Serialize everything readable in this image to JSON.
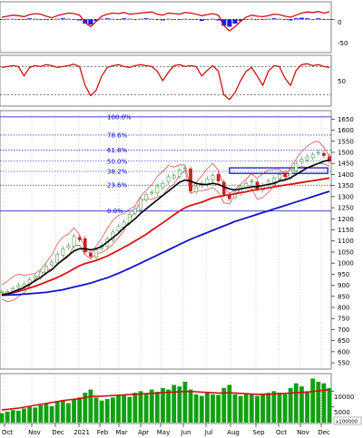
{
  "colors": {
    "price_up": "#2e8b2e",
    "price_down": "#cc2020",
    "ma_short": "#000000",
    "ma_mid": "#e01010",
    "ma_long": "#1010d0",
    "bollinger": "#d02020",
    "fib_line": "#0000cc",
    "volume_bar": "#10a010",
    "volume_ma": "#d01010",
    "macd_line": "#d01010",
    "macd_hist": "#1a1ae0",
    "stoch_line": "#d01010"
  },
  "chart_data": [
    {
      "panel": "macd",
      "type": "line",
      "ylim": [
        -60,
        30
      ],
      "y_ticks": [
        "0",
        "-50"
      ],
      "series": [
        {
          "kind": "line",
          "values": [
            4,
            6,
            8,
            7,
            5,
            9,
            11,
            10,
            6,
            3,
            7,
            10,
            12,
            11,
            8,
            -6,
            -14,
            -4,
            6,
            10,
            12,
            11,
            13,
            10,
            11,
            12,
            13,
            14,
            10,
            8,
            12,
            11,
            10,
            13,
            12,
            10,
            7,
            9,
            11,
            8,
            -12,
            -22,
            -14,
            -4,
            4,
            8,
            6,
            5,
            7,
            10,
            9,
            6,
            4,
            8,
            12,
            14,
            13,
            15,
            12,
            14
          ]
        },
        {
          "kind": "histogram",
          "values": [
            0,
            1,
            1,
            0,
            0,
            2,
            1,
            0,
            -1,
            0,
            1,
            2,
            1,
            0,
            -2,
            -8,
            -10,
            -3,
            1,
            2,
            1,
            0,
            2,
            1,
            0,
            1,
            2,
            1,
            -1,
            -2,
            1,
            0,
            -1,
            1,
            0,
            -1,
            -3,
            0,
            1,
            -2,
            -12,
            -14,
            -8,
            -3,
            0,
            1,
            0,
            -1,
            1,
            2,
            1,
            -1,
            -2,
            2,
            3,
            2,
            0,
            2,
            -1,
            0
          ]
        }
      ]
    },
    {
      "panel": "stochastic",
      "type": "line",
      "ylim": [
        0,
        100
      ],
      "y_ticks": [
        "50"
      ],
      "reference_levels": [
        80,
        20
      ],
      "series": [
        {
          "kind": "line",
          "values": [
            78,
            80,
            82,
            80,
            60,
            78,
            82,
            80,
            84,
            82,
            78,
            80,
            82,
            85,
            80,
            40,
            18,
            30,
            60,
            78,
            82,
            84,
            80,
            78,
            82,
            84,
            82,
            80,
            70,
            50,
            68,
            82,
            84,
            80,
            82,
            80,
            60,
            72,
            82,
            70,
            20,
            10,
            25,
            50,
            70,
            78,
            60,
            40,
            70,
            82,
            80,
            55,
            40,
            72,
            84,
            86,
            82,
            84,
            80,
            78
          ]
        }
      ]
    },
    {
      "panel": "price",
      "type": "line",
      "x_ticks": [
        "Oct",
        "Nov",
        "Dec",
        "2021",
        "Feb",
        "Mar",
        "Apr",
        "May",
        "Jun",
        "Jul",
        "Aug",
        "Sep",
        "Oct",
        "Nov",
        "Dec"
      ],
      "y_ticks": [
        1650,
        1600,
        1550,
        1500,
        1450,
        1400,
        1350,
        1300,
        1250,
        1200,
        1150,
        1100,
        1050,
        1000,
        950,
        900,
        850,
        800,
        750,
        700,
        650,
        600,
        550
      ],
      "ylim": [
        530,
        1680
      ],
      "fibonacci": [
        {
          "label": "100.0%",
          "value": 1660
        },
        {
          "label": "78.6%",
          "value": 1578
        },
        {
          "label": "61.8%",
          "value": 1510
        },
        {
          "label": "50.0%",
          "value": 1460
        },
        {
          "label": "38.2%",
          "value": 1414
        },
        {
          "label": "23.6%",
          "value": 1352
        },
        {
          "label": "0.0%",
          "value": 1235
        }
      ],
      "box": {
        "x_from": 0.695,
        "x_to": 0.995,
        "y_from": 1405,
        "y_to": 1430
      },
      "series": [
        {
          "name": "close",
          "values": [
            870,
            872,
            885,
            900,
            905,
            925,
            940,
            960,
            985,
            1005,
            1040,
            1065,
            1080,
            1120,
            1105,
            1050,
            1030,
            1060,
            1080,
            1110,
            1140,
            1165,
            1185,
            1220,
            1245,
            1290,
            1310,
            1320,
            1345,
            1360,
            1390,
            1395,
            1420,
            1430,
            1325,
            1345,
            1360,
            1380,
            1395,
            1370,
            1310,
            1290,
            1320,
            1345,
            1360,
            1370,
            1335,
            1350,
            1370,
            1385,
            1400,
            1390,
            1420,
            1450,
            1470,
            1480,
            1490,
            1500,
            1485,
            1460
          ]
        },
        {
          "name": "ma_short",
          "values": [
            855,
            860,
            870,
            880,
            890,
            905,
            920,
            935,
            955,
            970,
            995,
            1015,
            1035,
            1055,
            1065,
            1065,
            1060,
            1065,
            1075,
            1095,
            1115,
            1135,
            1160,
            1180,
            1200,
            1225,
            1245,
            1265,
            1285,
            1305,
            1325,
            1345,
            1365,
            1375,
            1370,
            1360,
            1355,
            1355,
            1360,
            1355,
            1345,
            1335,
            1330,
            1335,
            1340,
            1345,
            1345,
            1350,
            1355,
            1360,
            1370,
            1375,
            1385,
            1400,
            1415,
            1430,
            1440,
            1450,
            1460,
            1465
          ]
        },
        {
          "name": "ma_mid",
          "values": [
            860,
            862,
            866,
            872,
            880,
            888,
            896,
            905,
            915,
            925,
            935,
            948,
            960,
            975,
            988,
            998,
            1005,
            1012,
            1022,
            1032,
            1045,
            1058,
            1072,
            1085,
            1100,
            1115,
            1130,
            1148,
            1165,
            1182,
            1200,
            1218,
            1235,
            1250,
            1260,
            1268,
            1275,
            1285,
            1295,
            1300,
            1305,
            1308,
            1312,
            1318,
            1322,
            1328,
            1332,
            1336,
            1340,
            1344,
            1348,
            1352,
            1356,
            1360,
            1364,
            1368,
            1372,
            1376,
            1380,
            1384
          ]
        },
        {
          "name": "ma_long",
          "values": [
            855,
            856,
            857,
            858,
            860,
            862,
            864,
            866,
            868,
            872,
            876,
            880,
            886,
            892,
            898,
            904,
            910,
            918,
            926,
            934,
            944,
            954,
            965,
            976,
            988,
            1000,
            1012,
            1024,
            1036,
            1048,
            1060,
            1072,
            1084,
            1096,
            1108,
            1118,
            1128,
            1138,
            1148,
            1158,
            1168,
            1178,
            1188,
            1196,
            1204,
            1212,
            1220,
            1228,
            1236,
            1244,
            1252,
            1260,
            1268,
            1276,
            1284,
            1292,
            1300,
            1308,
            1316,
            1324
          ]
        }
      ]
    },
    {
      "panel": "volume",
      "type": "bar",
      "y_ticks": [
        "10000",
        "5000"
      ],
      "unit_label": "x100000",
      "ylim": [
        0,
        15000
      ],
      "series": [
        {
          "kind": "bar",
          "values": [
            3000,
            3500,
            4000,
            3800,
            4500,
            5000,
            4800,
            5500,
            6000,
            5200,
            6500,
            7000,
            6200,
            7500,
            8000,
            9500,
            10500,
            8000,
            7000,
            7500,
            8000,
            8500,
            9000,
            8200,
            9500,
            10000,
            9200,
            10500,
            9800,
            11000,
            10500,
            12000,
            11500,
            13000,
            10500,
            9000,
            8500,
            9500,
            9000,
            8800,
            11000,
            12000,
            9000,
            8500,
            9200,
            9000,
            8500,
            8800,
            9500,
            10000,
            9500,
            9000,
            11000,
            12500,
            11500,
            10000,
            14000,
            13000,
            12500,
            11000
          ]
        },
        {
          "kind": "line",
          "values": [
            4000,
            4200,
            4400,
            4600,
            4900,
            5200,
            5500,
            5800,
            6100,
            6400,
            6700,
            7000,
            7200,
            7400,
            7600,
            8000,
            8300,
            8400,
            8400,
            8500,
            8600,
            8700,
            8800,
            8900,
            9000,
            9100,
            9200,
            9300,
            9400,
            9500,
            9600,
            9700,
            9800,
            9900,
            9900,
            9800,
            9700,
            9600,
            9500,
            9400,
            9400,
            9500,
            9400,
            9300,
            9200,
            9100,
            9000,
            9000,
            9000,
            9100,
            9200,
            9300,
            9400,
            9500,
            9600,
            9700,
            9900,
            10100,
            10300,
            10400
          ]
        }
      ]
    }
  ]
}
